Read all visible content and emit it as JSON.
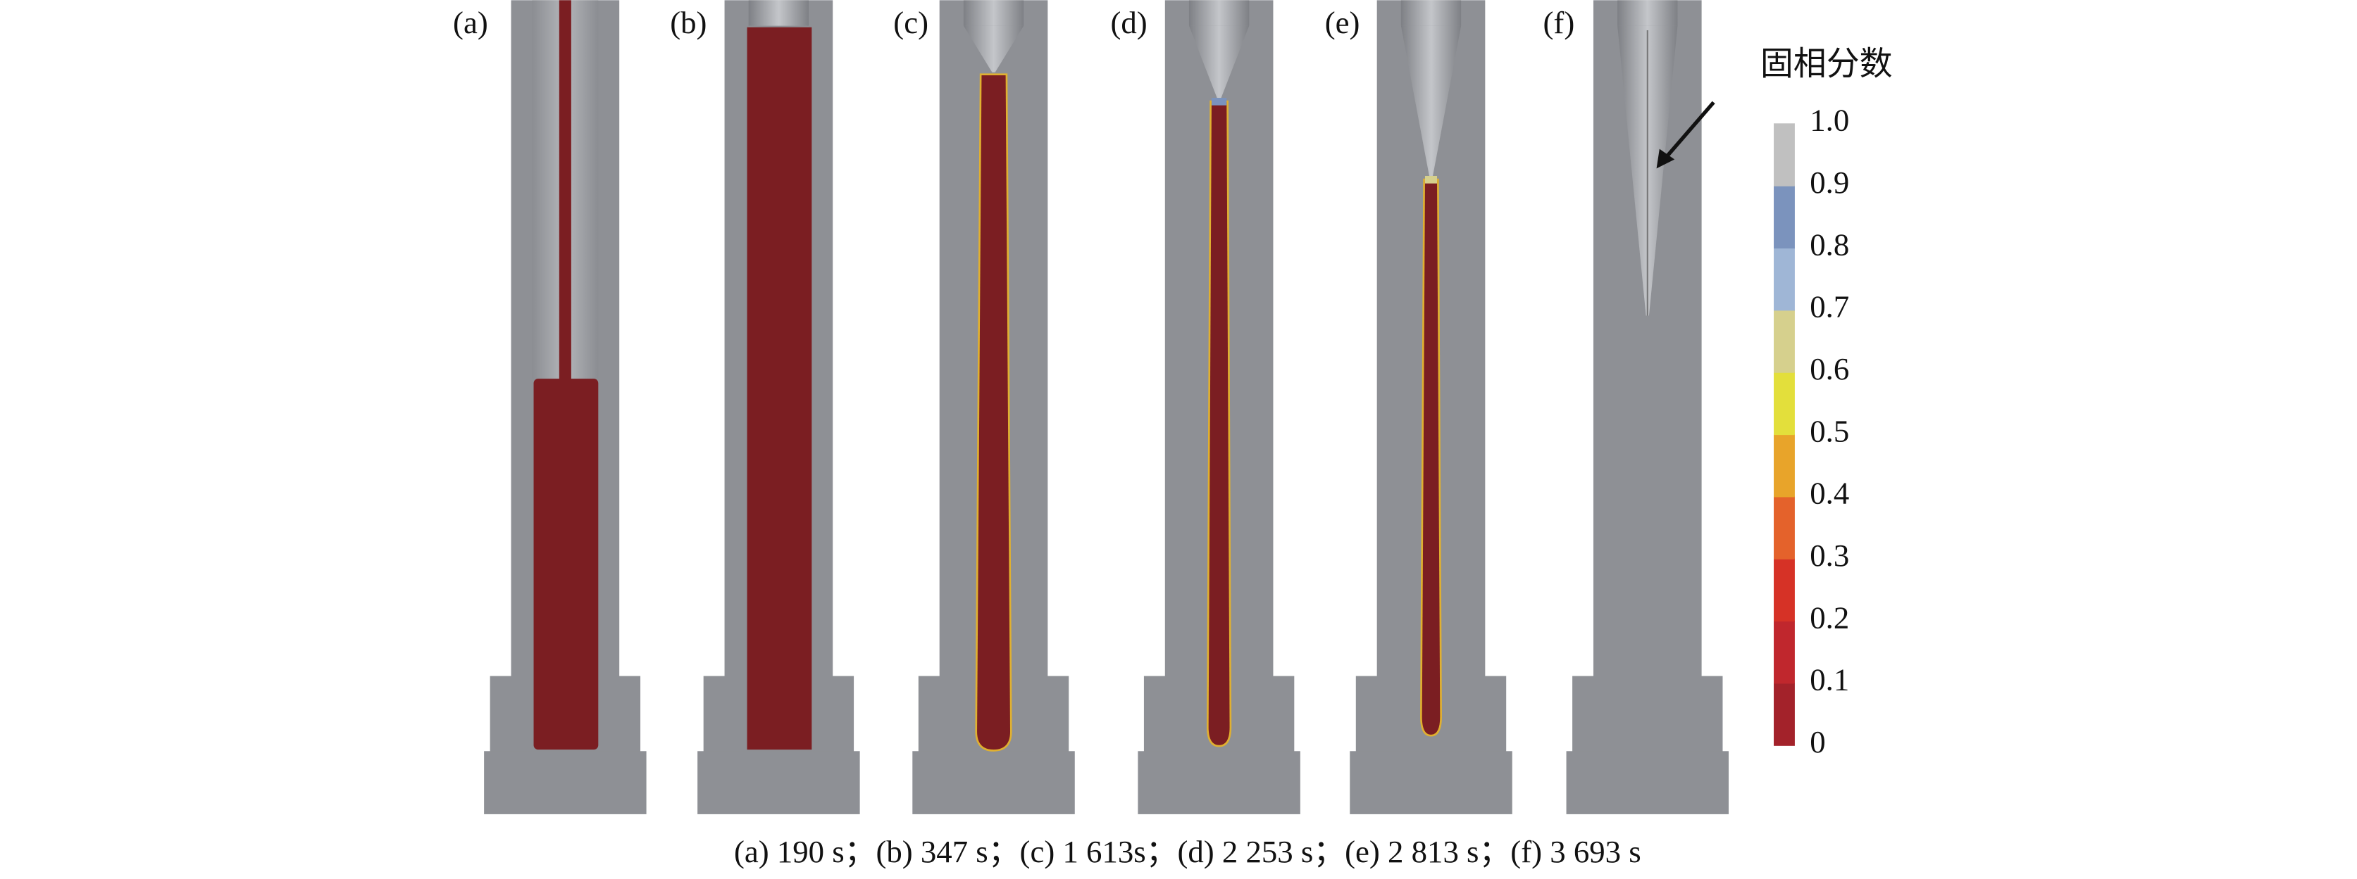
{
  "panel_labels": [
    "(a)",
    "(b)",
    "(c)",
    "(d)",
    "(e)",
    "(f)"
  ],
  "colorbar": {
    "title": "固相分数",
    "ticks": [
      "1.0",
      "0.9",
      "0.8",
      "0.7",
      "0.6",
      "0.5",
      "0.4",
      "0.3",
      "0.2",
      "0.1",
      "0"
    ]
  },
  "caption": "(a) 190 s；(b) 347 s；(c) 1 613s；(d) 2 253 s；(e) 2 813 s；(f) 3 693 s"
}
